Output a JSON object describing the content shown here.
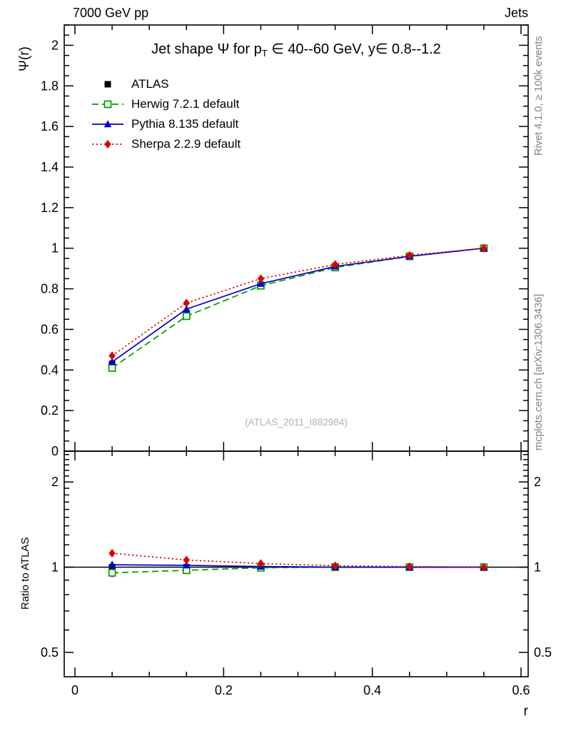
{
  "header": {
    "left": "7000 GeV pp",
    "right": "Jets"
  },
  "side_notes": {
    "top": "Rivet 4.1.0, ≥ 100k events",
    "bottom": "mcplots.cern.ch [arXiv:1306.3436]"
  },
  "chart_data": {
    "type": "line",
    "title": {
      "pre": "Jet shape Ψ for p",
      "sub": "T",
      "post": " ∈ 40--60 GeV, y∈ 0.8--1.2"
    },
    "xlabel": "r",
    "ylabel": "Ψ(r)",
    "ratio_label": "Ratio to ATLAS",
    "watermark": "(ATLAS_2011_I882984)",
    "x": [
      0.05,
      0.15,
      0.25,
      0.35,
      0.45,
      0.55
    ],
    "xlim": [
      -0.0144,
      0.6096
    ],
    "ylim": [
      0,
      2.1
    ],
    "ratio_ylim": [
      0.41,
      2.57
    ],
    "ratio_scale": "log",
    "x_major_ticks": [
      {
        "v": 0,
        "label": "0"
      },
      {
        "v": 0.2,
        "label": "0.2"
      },
      {
        "v": 0.4,
        "label": "0.4"
      },
      {
        "v": 0.6,
        "label": "0.6"
      }
    ],
    "x_minor_step": 0.05,
    "y_major_ticks": [
      {
        "v": 0,
        "label": "0"
      },
      {
        "v": 0.2,
        "label": "0.2"
      },
      {
        "v": 0.4,
        "label": "0.4"
      },
      {
        "v": 0.6,
        "label": "0.6"
      },
      {
        "v": 0.8,
        "label": "0.8"
      },
      {
        "v": 1,
        "label": "1"
      },
      {
        "v": 1.2,
        "label": "1.2"
      },
      {
        "v": 1.4,
        "label": "1.4"
      },
      {
        "v": 1.6,
        "label": "1.6"
      },
      {
        "v": 1.8,
        "label": "1.8"
      },
      {
        "v": 2,
        "label": "2"
      }
    ],
    "y_minor_step": 0.05,
    "ratio_major_ticks": [
      {
        "v": 0.5,
        "label": "0.5"
      },
      {
        "v": 1,
        "label": "1"
      },
      {
        "v": 2,
        "label": "2"
      }
    ],
    "ratio_minor_ticks": [
      0.6,
      0.7,
      0.8,
      0.9,
      1.1,
      1.2,
      1.3,
      1.4,
      1.5,
      1.6,
      1.7,
      1.8,
      1.9,
      2.1,
      2.2,
      2.3,
      2.4,
      2.5
    ],
    "reference_line": 1,
    "series": [
      {
        "name": "ATLAS",
        "color": "#000000",
        "line": "none",
        "marker": "square-filled",
        "values": [
          0.43,
          0.68,
          0.82,
          0.91,
          0.96,
          1.0
        ],
        "errors": [
          0.012,
          0.01,
          0.008,
          0.006,
          0.004,
          0.003
        ],
        "ratio": [
          1,
          1,
          1,
          1,
          1,
          1
        ],
        "ratio_errors": [
          0.028,
          0.016,
          0.01,
          0.007,
          0.005,
          0.004
        ]
      },
      {
        "name": "Herwig 7.2.1 default",
        "color": "#009900",
        "line": "dashed",
        "marker": "square-open",
        "values": [
          0.41,
          0.665,
          0.815,
          0.905,
          0.96,
          1.0
        ],
        "errors": [
          0.008,
          0.007,
          0.006,
          0.004,
          0.003,
          0.002
        ],
        "ratio": [
          0.955,
          0.975,
          0.995,
          1.0,
          1.0,
          1.0
        ],
        "ratio_errors": [
          0.035,
          0.012,
          0.008,
          0.007,
          0.005,
          0.004
        ]
      },
      {
        "name": "Pythia 8.135 default",
        "color": "#0000cc",
        "line": "solid",
        "marker": "triangle-filled",
        "values": [
          0.44,
          0.7,
          0.825,
          0.91,
          0.96,
          1.0
        ],
        "errors": [
          0.008,
          0.007,
          0.006,
          0.004,
          0.003,
          0.002
        ],
        "ratio": [
          1.02,
          1.015,
          1.005,
          1.0,
          1.0,
          1.0
        ],
        "ratio_errors": [
          0.02,
          0.012,
          0.008,
          0.006,
          0.005,
          0.004
        ]
      },
      {
        "name": "Sherpa 2.2.9 default",
        "color": "#dd0000",
        "line": "dotted",
        "marker": "diamond-filled",
        "values": [
          0.47,
          0.73,
          0.85,
          0.92,
          0.965,
          1.0
        ],
        "errors": [
          0.01,
          0.008,
          0.006,
          0.005,
          0.004,
          0.003
        ],
        "ratio": [
          1.12,
          1.06,
          1.03,
          1.012,
          1.005,
          1.0
        ],
        "ratio_errors": [
          0.022,
          0.014,
          0.01,
          0.008,
          0.006,
          0.005
        ]
      }
    ]
  }
}
